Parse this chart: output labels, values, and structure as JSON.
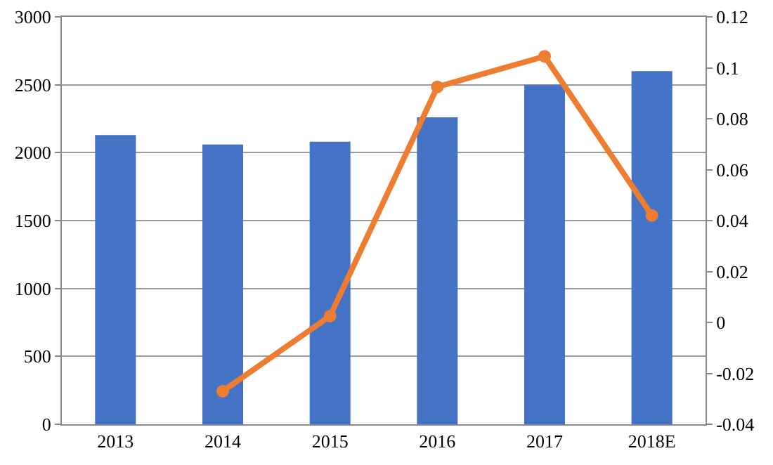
{
  "chart_data": {
    "type": "bar",
    "categories": [
      "2013",
      "2014",
      "2015",
      "2016",
      "2017",
      "2018E"
    ],
    "series": [
      {
        "color": "#4472c4",
        "values": [
          2130,
          2060,
          2080,
          2260,
          2500,
          2600
        ]
      },
      {
        "type": "line",
        "axis": "y2",
        "color": "#ed7d31",
        "marker": "circle",
        "values": [
          null,
          -0.027,
          0.0025,
          0.0925,
          0.1045,
          0.042
        ]
      }
    ],
    "ylim": [
      0,
      3000
    ],
    "yticks": [
      0,
      500,
      1000,
      1500,
      2000,
      2500,
      3000
    ],
    "y2lim": [
      -0.04,
      0.12
    ],
    "y2ticks": [
      -0.04,
      -0.02,
      0,
      0.02,
      0.04,
      0.06,
      0.08,
      0.1,
      0.12
    ],
    "grid": "y"
  }
}
